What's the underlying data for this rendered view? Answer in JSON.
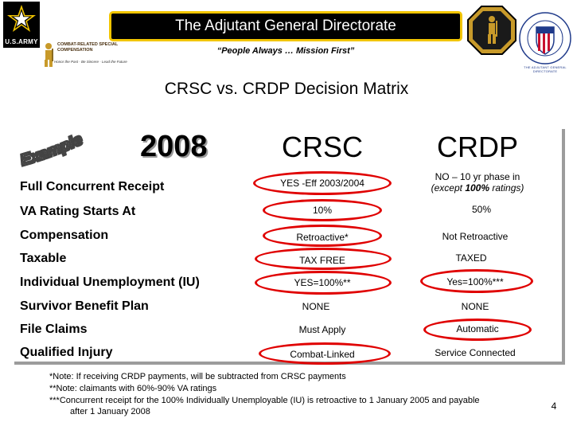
{
  "header": {
    "army_label": "U.S.ARMY",
    "crsc_logo_text": "COMBAT-RELATED SPECIAL COMPENSATION",
    "crsc_logo_tagline": "Honor the Past · Be Sincere · Lead the Future",
    "title": "The Adjutant General Directorate",
    "motto": "“People Always … Mission First”",
    "seal_text": "THE ADJUTANT GENERAL DIRECTORATE"
  },
  "matrix_title": "CRSC vs. CRDP Decision Matrix",
  "matrix": {
    "example_label": "Example",
    "year": "2008",
    "columns": [
      "CRSC",
      "CRDP"
    ],
    "rows": [
      {
        "label": "Full Concurrent Receipt",
        "crsc": "YES -Eff 2003/2004",
        "crdp_line1": "NO – 10 yr phase in",
        "crdp_line2_pre": "(except ",
        "crdp_line2_bold": "100%",
        "crdp_line2_post": " ratings)"
      },
      {
        "label": "VA Rating Starts At",
        "crsc": "10%",
        "crdp": "50%"
      },
      {
        "label": "Compensation",
        "crsc": "Retroactive*",
        "crdp": "Not Retroactive"
      },
      {
        "label": "Taxable",
        "crsc": "TAX FREE",
        "crdp": "TAXED"
      },
      {
        "label": "Individual Unemployment (IU)",
        "crsc": "YES=100%**",
        "crdp": "Yes=100%***"
      },
      {
        "label": "Survivor Benefit Plan",
        "crsc": "NONE",
        "crdp": "NONE"
      },
      {
        "label": "File Claims",
        "crsc": "Must Apply",
        "crdp": "Automatic"
      },
      {
        "label": "Qualified Injury",
        "crsc": "Combat-Linked",
        "crdp": "Service Connected"
      }
    ]
  },
  "footnotes": {
    "note1": "*Note: If receiving CRDP payments, will be subtracted from CRSC payments",
    "note2": "**Note: claimants with 60%-90% VA ratings",
    "note3_line1": "***Concurrent receipt for the 100% Individually Unemployable (IU) is retroactive to 1 January 2005 and payable",
    "note3_line2": "after 1 January 2008"
  },
  "page_number": "4",
  "colors": {
    "title_border": "#f2c500",
    "highlight_oval": "#e00000",
    "crsc_gold": "#c89a2a",
    "seal_red": "#c8102e",
    "seal_blue": "#1f3a8a"
  }
}
